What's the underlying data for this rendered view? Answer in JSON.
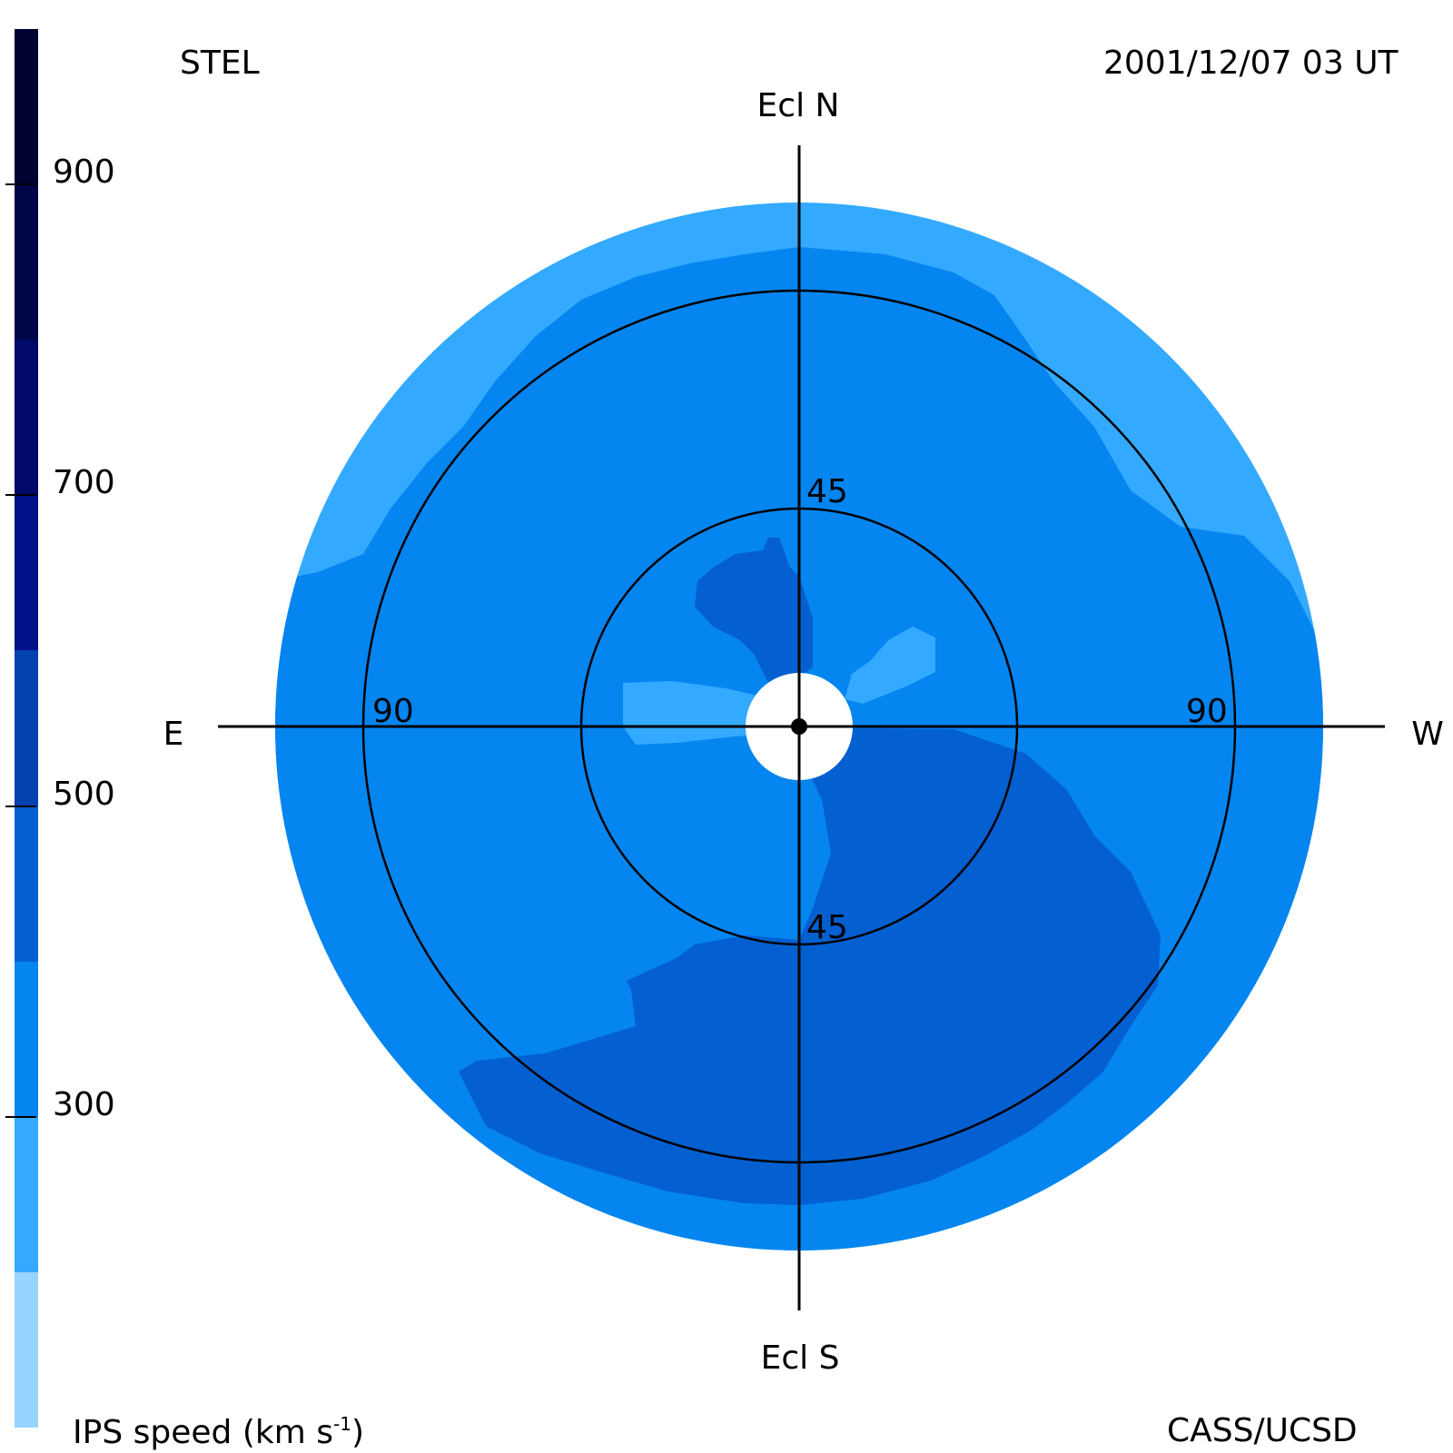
{
  "header": {
    "source": "STEL",
    "timestamp": "2001/12/07 03 UT"
  },
  "footer": {
    "colorbar_title_prefix": "IPS speed (km s",
    "colorbar_title_sup": "-1",
    "colorbar_title_suffix": ")",
    "credit": "CASS/UCSD"
  },
  "chart_data": {
    "type": "heatmap",
    "title": "",
    "projection": "sky map, elongation from Sun",
    "direction_labels": {
      "north": "Ecl N",
      "south": "Ecl S",
      "east": "E",
      "west": "W"
    },
    "elongation_rings_deg": [
      45,
      90
    ],
    "ring_labels": {
      "north_45": "45",
      "south_45": "45",
      "east_90": "90",
      "west_90": "90"
    },
    "colorbar": {
      "label": "IPS speed (km s-1)",
      "range": [
        100,
        1000
      ],
      "tick_values": [
        300,
        500,
        700,
        900
      ],
      "bins": [
        {
          "min": 100,
          "max": 200,
          "color": "#99d3ff"
        },
        {
          "min": 200,
          "max": 300,
          "color": "#33aaff"
        },
        {
          "min": 300,
          "max": 400,
          "color": "#0585ef"
        },
        {
          "min": 400,
          "max": 500,
          "color": "#045fd1"
        },
        {
          "min": 500,
          "max": 600,
          "color": "#0340b0"
        },
        {
          "min": 600,
          "max": 700,
          "color": "#021289"
        },
        {
          "min": 700,
          "max": 800,
          "color": "#00086a"
        },
        {
          "min": 800,
          "max": 900,
          "color": "#000548"
        },
        {
          "min": 900,
          "max": 1000,
          "color": "#000330"
        }
      ]
    },
    "regions": [
      {
        "name": "outer rim",
        "speed_bin": [
          200,
          300
        ],
        "color": "#33aaff"
      },
      {
        "name": "bulk",
        "speed_bin": [
          300,
          400
        ],
        "color": "#0585ef"
      },
      {
        "name": "southwest lobe",
        "speed_bin": [
          400,
          500
        ],
        "color": "#045fd1"
      },
      {
        "name": "north inner lobe",
        "speed_bin": [
          400,
          500
        ],
        "color": "#045fd1"
      },
      {
        "name": "east inner patch",
        "speed_bin": [
          200,
          300
        ],
        "color": "#33aaff"
      },
      {
        "name": "northwest inner patch",
        "speed_bin": [
          200,
          300
        ],
        "color": "#33aaff"
      }
    ],
    "grid": true
  }
}
